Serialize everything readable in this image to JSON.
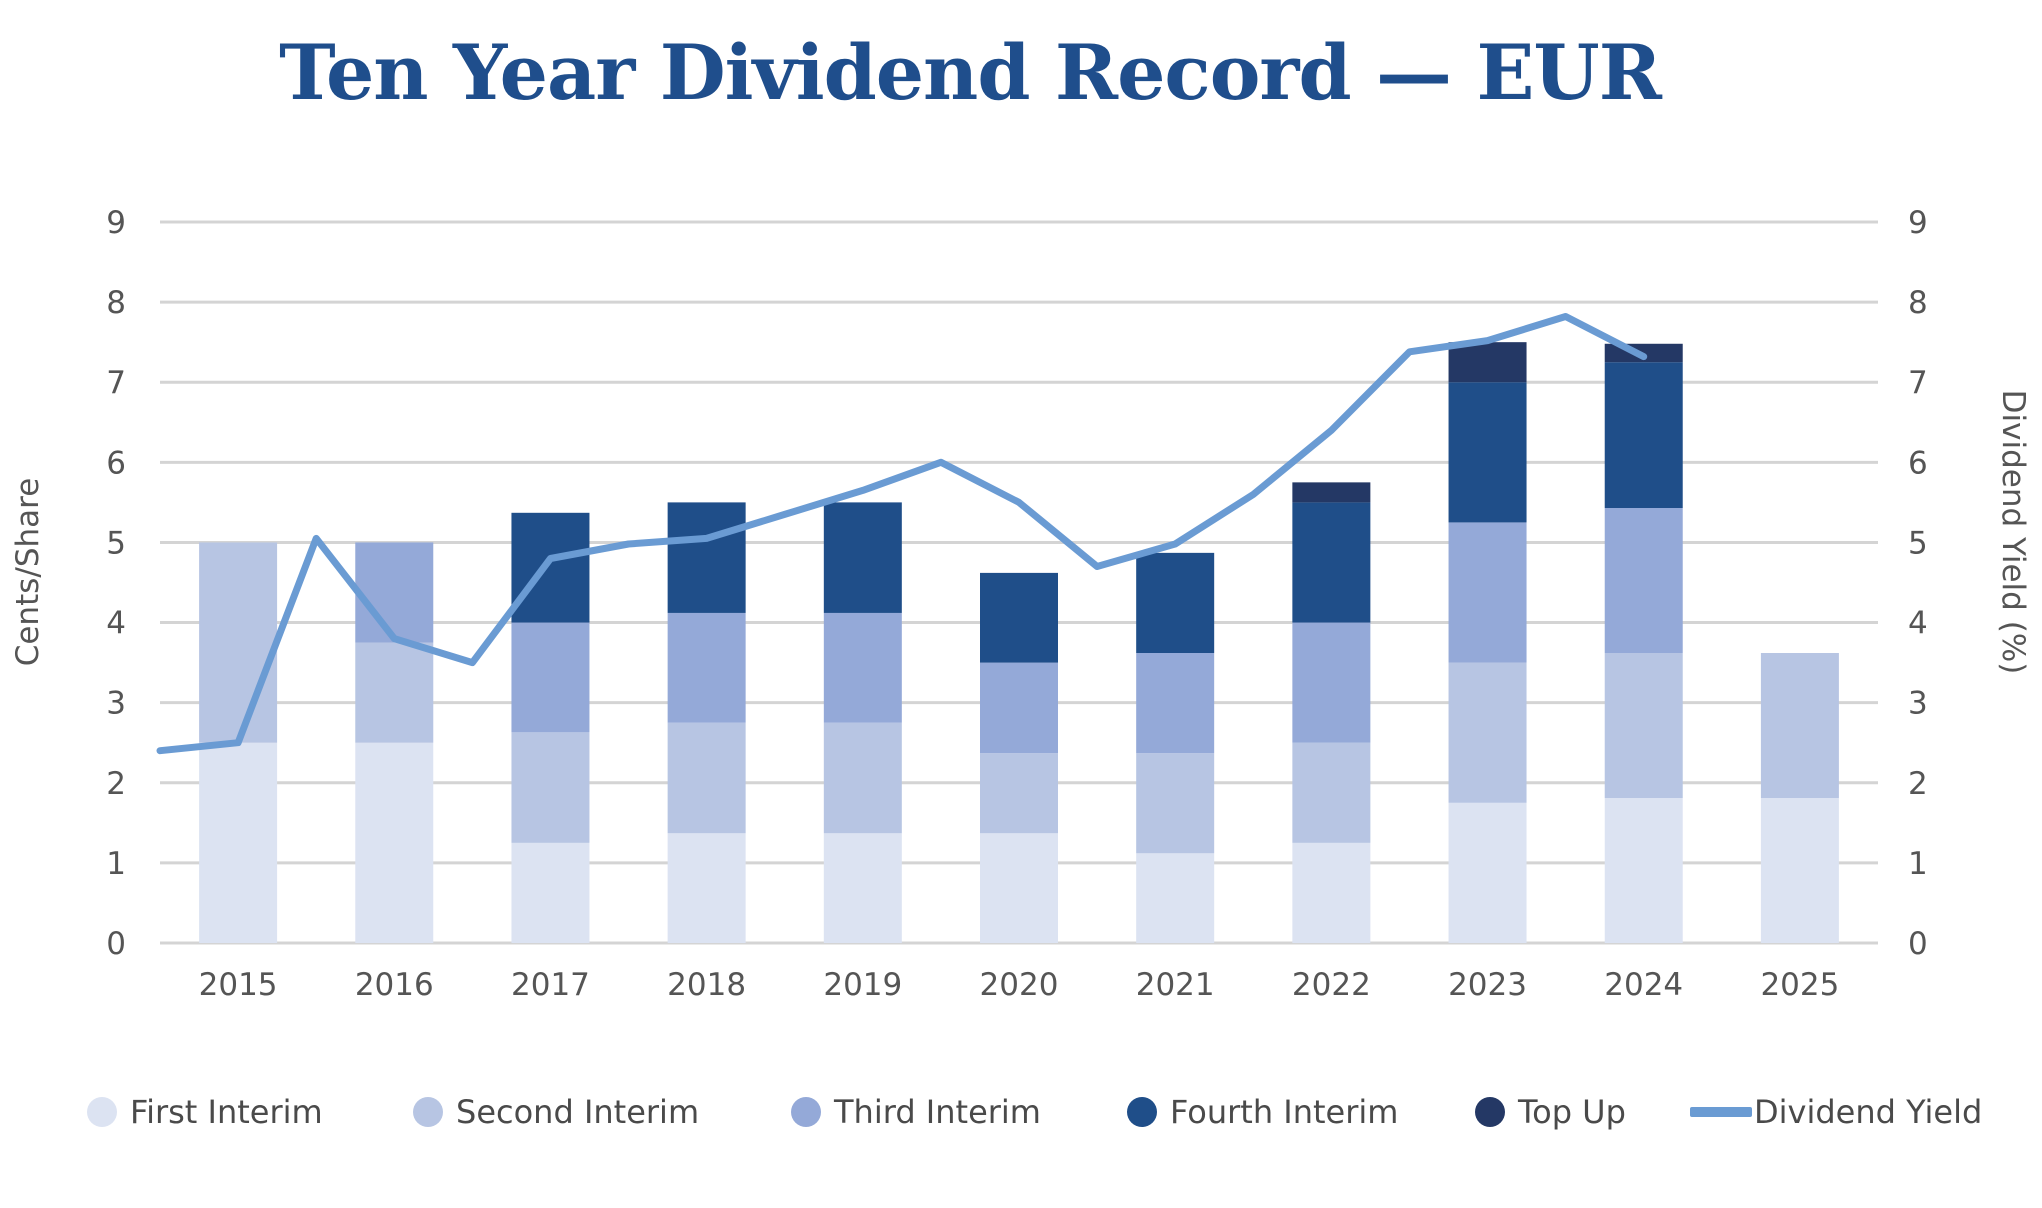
{
  "chart_data": {
    "type": "bar",
    "title": "Ten Year Dividend Record — EUR",
    "ylabel": "Cents/Share",
    "y2label": "Dividend Yield (%)",
    "ylim": [
      0,
      9
    ],
    "y2lim": [
      0,
      9
    ],
    "yticks": [
      "0",
      "1",
      "2",
      "3",
      "4",
      "5",
      "6",
      "7",
      "8",
      "9"
    ],
    "y2ticks": [
      "0",
      "1",
      "2",
      "3",
      "4",
      "5",
      "6",
      "7",
      "8",
      "9"
    ],
    "categories": [
      "2015",
      "2016",
      "2017",
      "2018",
      "2019",
      "2020",
      "2021",
      "2022",
      "2023",
      "2024",
      "2025"
    ],
    "stacked": true,
    "grid": true,
    "legend_position": "bottom",
    "series": [
      {
        "name": "First Interim",
        "type": "bar",
        "color": "#dce3f2",
        "values": [
          2.5,
          2.5,
          1.25,
          1.37,
          1.37,
          1.37,
          1.12,
          1.25,
          1.75,
          1.81,
          1.81
        ]
      },
      {
        "name": "Second Interim",
        "type": "bar",
        "color": "#b7c5e3",
        "values": [
          2.5,
          1.25,
          1.38,
          1.38,
          1.38,
          1.0,
          1.25,
          1.25,
          1.75,
          1.81,
          1.81
        ]
      },
      {
        "name": "Third Interim",
        "type": "bar",
        "color": "#94a9d8",
        "values": [
          0,
          1.25,
          1.37,
          1.37,
          1.37,
          1.13,
          1.25,
          1.5,
          1.75,
          1.81,
          0
        ]
      },
      {
        "name": "Fourth Interim",
        "type": "bar",
        "color": "#1f4e89",
        "values": [
          0,
          0,
          1.37,
          1.38,
          1.38,
          1.12,
          1.25,
          1.5,
          1.75,
          1.82,
          0
        ]
      },
      {
        "name": "Top Up",
        "type": "bar",
        "color": "#243865",
        "values": [
          0,
          0,
          0,
          0,
          0,
          0,
          0,
          0.25,
          0.5,
          0.23,
          0
        ]
      },
      {
        "name": "Dividend Yield",
        "type": "line",
        "axis": "right",
        "color": "#6a9bd3",
        "x": [
          2014.5,
          2015.0,
          2015.5,
          2016.0,
          2016.5,
          2017.0,
          2017.5,
          2018.0,
          2018.5,
          2019.0,
          2019.5,
          2020.0,
          2020.5,
          2021.0,
          2021.5,
          2022.0,
          2022.5,
          2023.0,
          2023.5,
          2024.0
        ],
        "values": [
          2.4,
          2.5,
          5.05,
          3.8,
          3.5,
          4.8,
          4.98,
          5.05,
          5.35,
          5.65,
          6.0,
          5.5,
          4.7,
          4.98,
          5.6,
          6.4,
          7.38,
          7.52,
          7.82,
          7.32
        ]
      }
    ]
  }
}
